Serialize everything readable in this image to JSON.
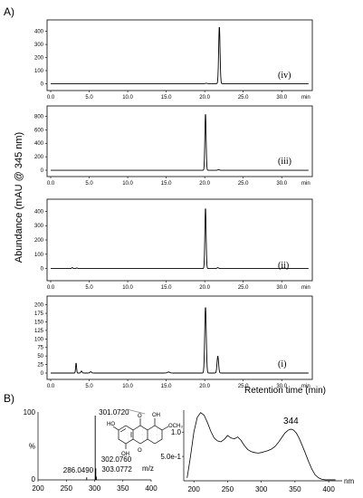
{
  "panel_a_label": "A)",
  "panel_b_label": "B)",
  "y_axis_label": "Abundance (mAU @ 345 nm)",
  "x_axis_label": "Retention time (min)",
  "structure": {
    "atoms": [
      "HO",
      "OH",
      "OCH₃",
      "O",
      "OH",
      "O"
    ]
  },
  "chart_data": [
    {
      "type": "line",
      "label": "(iv)",
      "x_ticks": [
        "0.0",
        "5.0",
        "10.0",
        "15.0",
        "20.0",
        "25.0",
        "30.0"
      ],
      "x_unit": "min",
      "xlim": [
        0,
        33.5
      ],
      "y_ticks": [
        "0",
        "100",
        "200",
        "300",
        "400"
      ],
      "ylim": [
        -25,
        460
      ],
      "baseline": 0,
      "peaks": [
        {
          "rt": 20.2,
          "height": 3,
          "width": 0.12
        },
        {
          "rt": 21.9,
          "height": 440,
          "width": 0.09
        }
      ]
    },
    {
      "type": "line",
      "label": "(iii)",
      "x_ticks": [
        "0.0",
        "5.0",
        "10.0",
        "15.0",
        "20.0",
        "25.0",
        "30.0"
      ],
      "x_unit": "min",
      "xlim": [
        0,
        33.5
      ],
      "y_ticks": [
        "0",
        "200",
        "400",
        "600",
        "800"
      ],
      "ylim": [
        -40,
        900
      ],
      "baseline": 0,
      "peaks": [
        {
          "rt": 20.1,
          "height": 850,
          "width": 0.08
        },
        {
          "rt": 21.8,
          "height": 8,
          "width": 0.1
        }
      ]
    },
    {
      "type": "line",
      "label": "(ii)",
      "x_ticks": [
        "0.0",
        "5.0",
        "10.0",
        "15.0",
        "20.0",
        "25.0",
        "30.0"
      ],
      "x_unit": "min",
      "xlim": [
        0,
        33.5
      ],
      "y_ticks": [
        "0",
        "100",
        "200",
        "300",
        "400"
      ],
      "ylim": [
        -60,
        460
      ],
      "baseline": 0,
      "peaks": [
        {
          "rt": 2.8,
          "height": 6,
          "width": 0.08
        },
        {
          "rt": 3.4,
          "height": 4,
          "width": 0.08
        },
        {
          "rt": 20.1,
          "height": 430,
          "width": 0.08
        },
        {
          "rt": 21.7,
          "height": 6,
          "width": 0.1
        }
      ]
    },
    {
      "type": "line",
      "label": "(i)",
      "x_ticks": [
        "0.0",
        "5.0",
        "10.0",
        "15.0",
        "20.0",
        "25.0",
        "30.0"
      ],
      "x_unit": "min",
      "xlim": [
        0,
        33.5
      ],
      "y_ticks": [
        "0",
        "25",
        "50",
        "75",
        "100",
        "125",
        "150",
        "175",
        "200"
      ],
      "ylim": [
        -8,
        215
      ],
      "baseline": 0,
      "peaks": [
        {
          "rt": 3.3,
          "height": 30,
          "width": 0.06
        },
        {
          "rt": 4.0,
          "height": 6,
          "width": 0.08
        },
        {
          "rt": 5.2,
          "height": 4,
          "width": 0.1
        },
        {
          "rt": 15.3,
          "height": 3,
          "width": 0.15
        },
        {
          "rt": 20.1,
          "height": 195,
          "width": 0.1
        },
        {
          "rt": 21.7,
          "height": 50,
          "width": 0.1
        }
      ]
    },
    {
      "type": "bar",
      "name": "mass spectrum",
      "x_ticks": [
        "200",
        "250",
        "300",
        "350",
        "400"
      ],
      "x_unit": "m/z",
      "xlim": [
        200,
        400
      ],
      "y_ticks": [
        "100",
        "%",
        "0"
      ],
      "ylim": [
        0,
        100
      ],
      "peaks": [
        {
          "mz": 286.049,
          "intensity": 4,
          "label": "286.0490"
        },
        {
          "mz": 301.072,
          "intensity": 100,
          "label": "301.0720"
        },
        {
          "mz": 302.076,
          "intensity": 18,
          "label": "302.0760"
        },
        {
          "mz": 303.0772,
          "intensity": 5,
          "label": "303.0772"
        }
      ]
    },
    {
      "type": "line",
      "name": "UV spectrum",
      "x_ticks": [
        "200",
        "250",
        "300",
        "350",
        "400"
      ],
      "x_unit": "nm",
      "xlim": [
        185,
        420
      ],
      "y_ticks": [
        "1.0",
        "5.0e-1"
      ],
      "ylim": [
        0,
        1.45
      ],
      "annotation": "344",
      "x": [
        190,
        195,
        200,
        205,
        210,
        215,
        220,
        225,
        230,
        235,
        240,
        245,
        250,
        255,
        260,
        265,
        270,
        275,
        280,
        285,
        290,
        295,
        300,
        305,
        310,
        315,
        320,
        325,
        330,
        335,
        340,
        344,
        348,
        352,
        356,
        360,
        365,
        370,
        375,
        380,
        385,
        390,
        395,
        400,
        405,
        410
      ],
      "y": [
        0.06,
        0.5,
        1.0,
        1.3,
        1.4,
        1.35,
        1.2,
        1.02,
        0.88,
        0.82,
        0.8,
        0.85,
        0.93,
        0.88,
        0.86,
        0.9,
        0.83,
        0.72,
        0.64,
        0.6,
        0.58,
        0.57,
        0.58,
        0.6,
        0.62,
        0.65,
        0.7,
        0.78,
        0.88,
        0.98,
        1.04,
        1.06,
        1.04,
        0.98,
        0.88,
        0.75,
        0.58,
        0.4,
        0.24,
        0.12,
        0.06,
        0.03,
        0.02,
        0.02,
        0.02,
        0.02
      ]
    }
  ]
}
